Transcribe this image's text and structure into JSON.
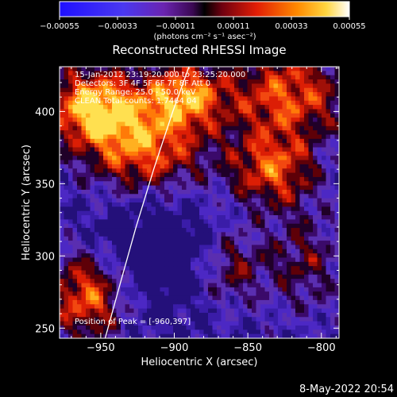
{
  "chart_data": {
    "type": "heatmap",
    "title": "Reconstructed RHESSI Image",
    "xlabel": "Heliocentric X (arcsec)",
    "ylabel": "Heliocentric Y (arcsec)",
    "xlim": [
      -978,
      -788
    ],
    "ylim": [
      243,
      431
    ],
    "xticks": [
      -950,
      -900,
      -850,
      -800
    ],
    "xtick_labels": [
      "−950",
      "−900",
      "−850",
      "−800"
    ],
    "yticks": [
      250,
      300,
      350,
      400
    ],
    "ytick_labels": [
      "250",
      "300",
      "350",
      "400"
    ],
    "colorbar": {
      "ticks": [
        -0.00055,
        -0.00033,
        -0.00011,
        0.00011,
        0.00033,
        0.00055
      ],
      "tick_labels": [
        "−0.00055",
        "−0.00033",
        "−0.00011",
        "0.00011",
        "0.00033",
        "0.00055"
      ],
      "unit_label": "(photons cm⁻² s⁻¹ asec⁻²)",
      "range": [
        -0.00055,
        0.00055
      ]
    },
    "annotations": [
      "15-Jan-2012 23:19:20.000 to 23:25:20.000",
      "Detectors: 3F 4F 5F 6F 7F 8F Att 0",
      "Energy Range: 25.0 - 50.0 keV",
      "CLEAN   Total counts: 1.7464 04"
    ],
    "peak_label": "Position of Peak = [-960,397]",
    "peak_position": [
      -960,
      397
    ],
    "limb_curve": [
      [
        -947,
        243
      ],
      [
        -937,
        280
      ],
      [
        -926,
        320
      ],
      [
        -914,
        360
      ],
      [
        -901,
        400
      ],
      [
        -890,
        431
      ]
    ],
    "grid": false,
    "colors": {
      "background": "#000000",
      "text": "#ffffff"
    }
  },
  "timestamp": "8-May-2022 20:54"
}
